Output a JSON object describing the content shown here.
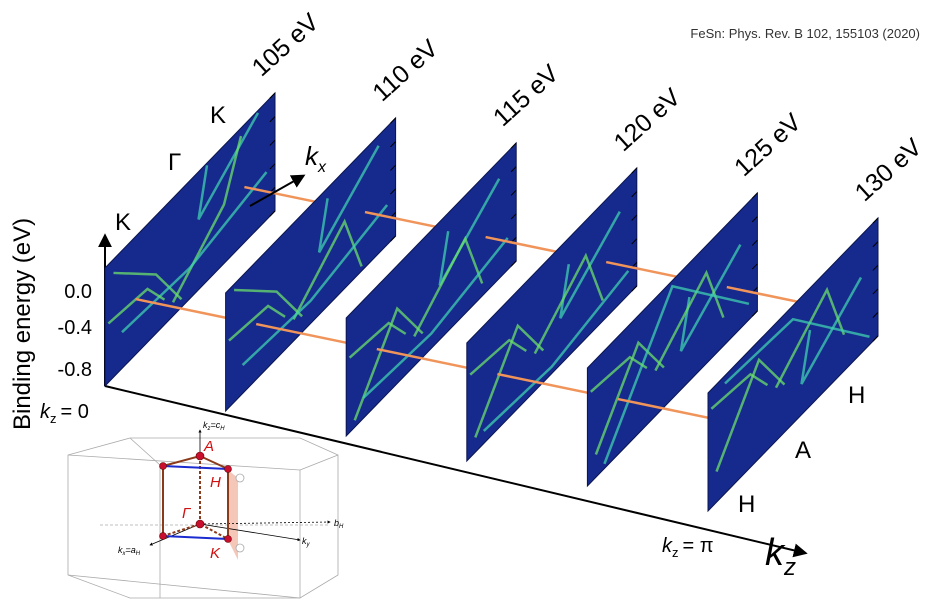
{
  "citation": "FeSn: Phys. Rev. B 102, 155103 (2020)",
  "panels": [
    "105 eV",
    "110 eV",
    "115 eV",
    "120 eV",
    "125 eV",
    "130 eV"
  ],
  "y_axis": {
    "label": "Binding energy (eV)",
    "ticks": [
      "0.0",
      "-0.4",
      "-0.8"
    ]
  },
  "kz_axis": {
    "k": "k",
    "sub": "z",
    "start": "= 0",
    "end": "= π"
  },
  "kx_axis": {
    "k": "k",
    "sub": "x"
  },
  "first_panel_points": [
    "K",
    "Γ",
    "K"
  ],
  "last_panel_points": [
    "H",
    "A",
    "H"
  ],
  "inset": {
    "A": "A",
    "H": "H",
    "Gamma": "Γ",
    "K": "K",
    "kz_k": "k",
    "kz_sub": "z",
    "kz_eq": "=c",
    "kz_eq_sub": "H",
    "kx_k": "k",
    "kx_sub": "x",
    "kx_eq": "=a",
    "kx_eq_sub": "H",
    "ky_k": "k",
    "ky_sub": "y",
    "b": "b",
    "b_sub": "H"
  }
}
